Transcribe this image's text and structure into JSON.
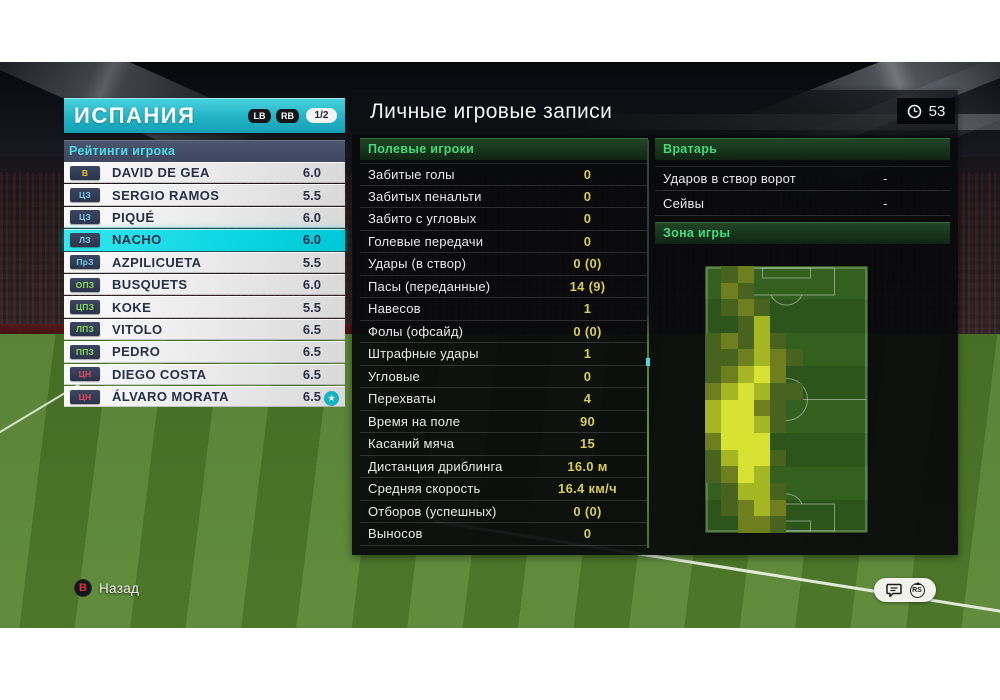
{
  "team_panel": {
    "team_name": "ИСПАНИЯ",
    "lb_button": "LB",
    "rb_button": "RB",
    "page_indicator": "1/2",
    "ratings_header": "Рейтинги игрока",
    "players": [
      {
        "pos": "В",
        "pos_type": "gk",
        "name": "DAVID DE GEA",
        "rating": "6.0",
        "selected": false,
        "star": false
      },
      {
        "pos": "ЦЗ",
        "pos_type": "df",
        "name": "SERGIO RAMOS",
        "rating": "5.5",
        "selected": false,
        "star": false
      },
      {
        "pos": "ЦЗ",
        "pos_type": "df",
        "name": "PIQUÉ",
        "rating": "6.0",
        "selected": false,
        "star": false
      },
      {
        "pos": "ЛЗ",
        "pos_type": "df",
        "name": "NACHO",
        "rating": "6.0",
        "selected": true,
        "star": false
      },
      {
        "pos": "ПрЗ",
        "pos_type": "df",
        "name": "AZPILICUETA",
        "rating": "5.5",
        "selected": false,
        "star": false
      },
      {
        "pos": "ОПЗ",
        "pos_type": "mf",
        "name": "BUSQUETS",
        "rating": "6.0",
        "selected": false,
        "star": false
      },
      {
        "pos": "ЦПЗ",
        "pos_type": "mf",
        "name": "KOKE",
        "rating": "5.5",
        "selected": false,
        "star": false
      },
      {
        "pos": "ЛПЗ",
        "pos_type": "mf",
        "name": "VITOLO",
        "rating": "6.5",
        "selected": false,
        "star": false
      },
      {
        "pos": "ППЗ",
        "pos_type": "mf",
        "name": "PEDRO",
        "rating": "6.5",
        "selected": false,
        "star": false
      },
      {
        "pos": "ЦН",
        "pos_type": "fw",
        "name": "DIEGO COSTA",
        "rating": "6.5",
        "selected": false,
        "star": false
      },
      {
        "pos": "ЦН",
        "pos_type": "fw",
        "name": "ÁLVARO MORATA",
        "rating": "6.5",
        "selected": false,
        "star": true
      }
    ]
  },
  "records_panel": {
    "title": "Личные игровые записи",
    "match_time": "53",
    "clock_icon": "clock-icon",
    "field_players_header": "Полевые игроки",
    "goalkeeper_header": "Вратарь",
    "zone_header": "Зона игры",
    "field_stats": [
      {
        "label": "Забитые голы",
        "value": "0"
      },
      {
        "label": "Забитых пенальти",
        "value": "0"
      },
      {
        "label": "Забито с угловых",
        "value": "0"
      },
      {
        "label": "Голевые передачи",
        "value": "0"
      },
      {
        "label": "Удары (в створ)",
        "value": "0 (0)"
      },
      {
        "label": "Пасы (переданные)",
        "value": "14 (9)"
      },
      {
        "label": "Навесов",
        "value": "1"
      },
      {
        "label": "Фолы (офсайд)",
        "value": "0 (0)"
      },
      {
        "label": "Штрафные удары",
        "value": "1"
      },
      {
        "label": "Угловые",
        "value": "0"
      },
      {
        "label": "Перехваты",
        "value": "4"
      },
      {
        "label": "Время на поле",
        "value": "90"
      },
      {
        "label": "Касаний мяча",
        "value": "15"
      },
      {
        "label": "Дистанция дриблинга",
        "value": "16.0 м"
      },
      {
        "label": "Средняя скорость",
        "value": "16.4 км/ч"
      },
      {
        "label": "Отборов (успешных)",
        "value": "0 (0)"
      },
      {
        "label": "Выносов",
        "value": "0"
      }
    ],
    "gk_stats": [
      {
        "label": "Ударов в створ ворот",
        "value": "-"
      },
      {
        "label": "Сейвы",
        "value": "-"
      }
    ],
    "heatmap": {
      "cols": 10,
      "rows": 16,
      "palette": {
        "1": "#47631d",
        "2": "#6f7f1f",
        "3": "#a4b723",
        "4": "#d7e233"
      },
      "intensity": [
        [
          0,
          1,
          2,
          0,
          0,
          0,
          0,
          0,
          0,
          0
        ],
        [
          0,
          2,
          1,
          0,
          0,
          0,
          0,
          0,
          0,
          0
        ],
        [
          0,
          1,
          2,
          1,
          0,
          0,
          0,
          0,
          0,
          0
        ],
        [
          0,
          0,
          1,
          3,
          0,
          0,
          0,
          0,
          0,
          0
        ],
        [
          1,
          2,
          1,
          3,
          1,
          0,
          0,
          0,
          0,
          0
        ],
        [
          1,
          1,
          2,
          3,
          2,
          1,
          0,
          0,
          0,
          0
        ],
        [
          1,
          2,
          3,
          4,
          2,
          0,
          0,
          0,
          0,
          0
        ],
        [
          2,
          3,
          4,
          3,
          1,
          1,
          0,
          0,
          0,
          0
        ],
        [
          3,
          4,
          4,
          2,
          1,
          0,
          0,
          0,
          0,
          0
        ],
        [
          3,
          4,
          4,
          3,
          1,
          0,
          0,
          0,
          0,
          0
        ],
        [
          2,
          4,
          4,
          4,
          0,
          0,
          0,
          0,
          0,
          0
        ],
        [
          1,
          3,
          4,
          4,
          1,
          0,
          0,
          0,
          0,
          0
        ],
        [
          1,
          2,
          4,
          3,
          0,
          0,
          0,
          0,
          0,
          0
        ],
        [
          0,
          1,
          3,
          3,
          1,
          0,
          0,
          0,
          0,
          0
        ],
        [
          0,
          1,
          2,
          3,
          2,
          0,
          0,
          0,
          0,
          0
        ],
        [
          0,
          0,
          2,
          2,
          1,
          0,
          0,
          0,
          0,
          0
        ]
      ]
    }
  },
  "footer": {
    "back_button_glyph": "B",
    "back_label": "Назад",
    "chat_icon": "speech-bubble-icon",
    "stick_icon_label": "RS",
    "star_glyph": "★"
  },
  "colors": {
    "accent_teal": "#19c2d1",
    "selected_row": "#00dce8",
    "stat_value_yellow": "#d9cd4f",
    "section_green": "#43da7e"
  }
}
